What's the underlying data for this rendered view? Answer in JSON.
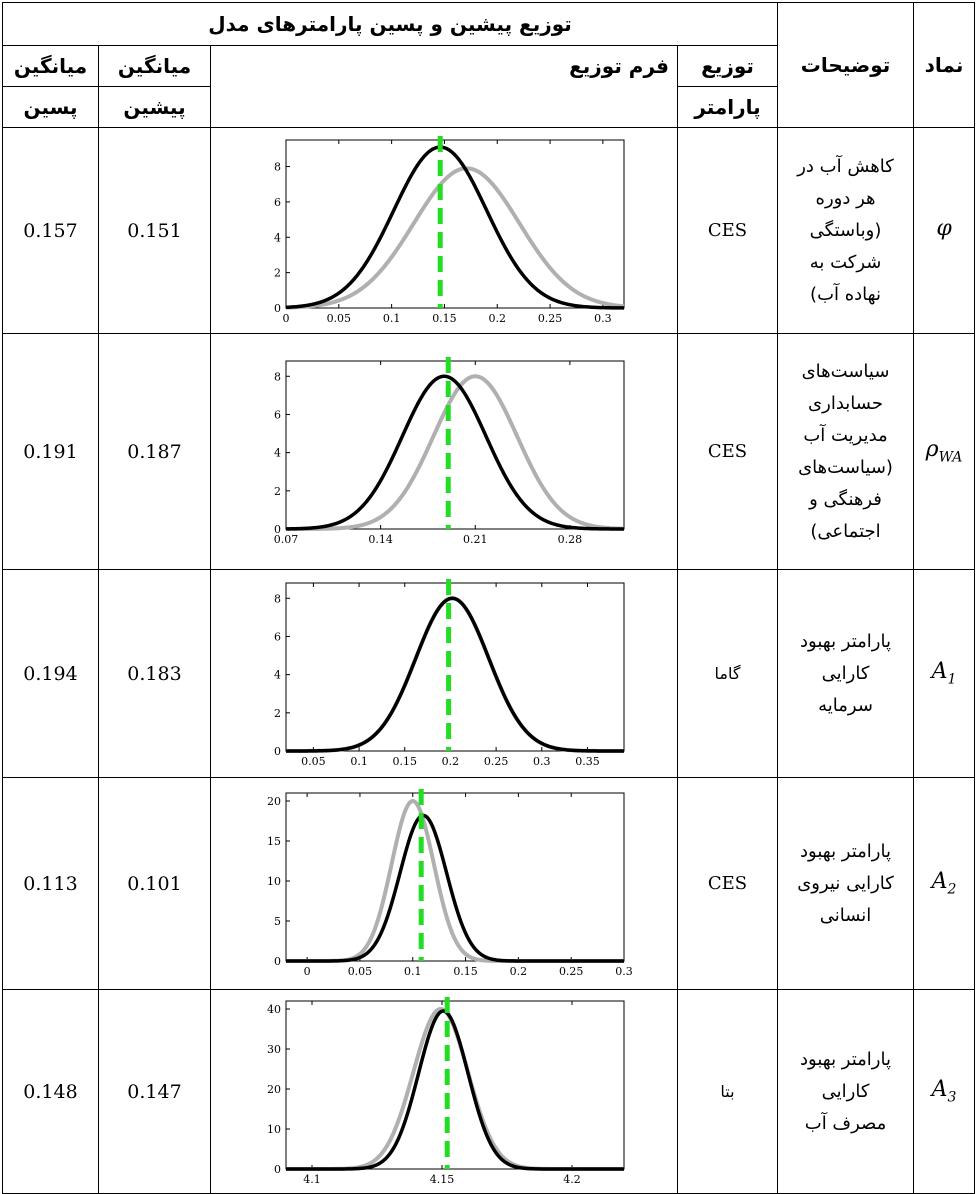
{
  "header": {
    "title": "توزیع پیشین و پسین پارامترهای مدل",
    "posterior_mean_line1": "میانگین",
    "posterior_mean_line2": "پسین",
    "prior_mean_line1": "میانگین",
    "prior_mean_line2": "پیشین",
    "dist_form": "فرم توزیع",
    "param_dist_line1": "توزیع",
    "param_dist_line2": "پارامتر",
    "description": "توضیحات",
    "symbol": "نماد"
  },
  "rows": [
    {
      "posterior_mean": "0.157",
      "prior_mean": "0.151",
      "param_dist": "CES",
      "description_lines": [
        "کاهش آب در",
        "هر دوره",
        "(وباستگی",
        "شرکت به",
        "نهاده آب)"
      ],
      "symbol": "φ",
      "symbol_sub": ""
    },
    {
      "posterior_mean": "0.191",
      "prior_mean": "0.187",
      "param_dist": "CES",
      "description_lines": [
        "سیاست‌های",
        "حسابداری",
        "مدیریت آب",
        "(سیاست‌های",
        "فرهنگی و",
        "اجتماعی)"
      ],
      "symbol": "ρ",
      "symbol_sub": "WA"
    },
    {
      "posterior_mean": "0.194",
      "prior_mean": "0.183",
      "param_dist": "گاما",
      "description_lines": [
        "پارامتر بهبود",
        "کارایی",
        "سرمایه"
      ],
      "symbol": "A",
      "symbol_sub": "1"
    },
    {
      "posterior_mean": "0.113",
      "prior_mean": "0.101",
      "param_dist": "CES",
      "description_lines": [
        "پارامتر بهبود",
        "کارایی نیروی",
        "انسانی"
      ],
      "symbol": "A",
      "symbol_sub": "2"
    },
    {
      "posterior_mean": "0.148",
      "prior_mean": "0.147",
      "param_dist": "بتا",
      "description_lines": [
        "پارامتر بهبود",
        "کارایی",
        "مصرف آب"
      ],
      "symbol": "A",
      "symbol_sub": "3"
    }
  ],
  "chart_data": [
    {
      "type": "line",
      "xlim": [
        0,
        0.32
      ],
      "ylim": [
        0,
        9.5
      ],
      "xticks": [
        "0",
        "0.05",
        "0.1",
        "0.15",
        "0.2",
        "0.25",
        "0.3"
      ],
      "xtick_values": [
        0,
        0.05,
        0.1,
        0.15,
        0.2,
        0.25,
        0.3
      ],
      "yticks": [
        "0",
        "2",
        "4",
        "6",
        "8"
      ],
      "ytick_values": [
        0,
        2,
        4,
        6,
        8
      ],
      "series": [
        {
          "mean": 0.171,
          "sd": 0.05,
          "peak": 7.9,
          "color": "#b0b0b0"
        },
        {
          "mean": 0.146,
          "sd": 0.044,
          "peak": 9.1,
          "color": "#000000"
        }
      ],
      "vline": {
        "x": 0.146,
        "color": "#22dd22"
      }
    },
    {
      "type": "line",
      "xlim": [
        0.07,
        0.32
      ],
      "ylim": [
        0,
        8.8
      ],
      "xticks": [
        "0.07",
        "0.14",
        "0.21",
        "0.28"
      ],
      "xtick_values": [
        0.07,
        0.14,
        0.21,
        0.28
      ],
      "yticks": [
        "0",
        "2",
        "4",
        "6",
        "8"
      ],
      "ytick_values": [
        0,
        2,
        4,
        6,
        8
      ],
      "series": [
        {
          "mean": 0.21,
          "sd": 0.031,
          "peak": 8.0,
          "color": "#b0b0b0"
        },
        {
          "mean": 0.187,
          "sd": 0.031,
          "peak": 8.0,
          "color": "#000000"
        }
      ],
      "vline": {
        "x": 0.19,
        "color": "#22dd22"
      }
    },
    {
      "type": "line",
      "xlim": [
        0.02,
        0.39
      ],
      "ylim": [
        0,
        8.8
      ],
      "xticks": [
        "0.05",
        "0.1",
        "0.15",
        "0.2",
        "0.25",
        "0.3",
        "0.35"
      ],
      "xtick_values": [
        0.05,
        0.1,
        0.15,
        0.2,
        0.25,
        0.3,
        0.35
      ],
      "yticks": [
        "0",
        "2",
        "4",
        "6",
        "8"
      ],
      "ytick_values": [
        0,
        2,
        4,
        6,
        8
      ],
      "series": [
        {
          "mean": 0.202,
          "sd": 0.04,
          "peak": 8.0,
          "color": "#b0b0b0"
        },
        {
          "mean": 0.202,
          "sd": 0.04,
          "peak": 8.0,
          "color": "#000000"
        }
      ],
      "vline": {
        "x": 0.198,
        "color": "#22dd22"
      }
    },
    {
      "type": "line",
      "xlim": [
        -0.02,
        0.3
      ],
      "ylim": [
        0,
        21
      ],
      "xticks": [
        "0",
        "0.05",
        "0.1",
        "0.15",
        "0.2",
        "0.25",
        "0.3"
      ],
      "xtick_values": [
        0,
        0.05,
        0.1,
        0.15,
        0.2,
        0.25,
        0.3
      ],
      "yticks": [
        "0",
        "5",
        "10",
        "15",
        "20"
      ],
      "ytick_values": [
        0,
        5,
        10,
        15,
        20
      ],
      "series": [
        {
          "mean": 0.1,
          "sd": 0.02,
          "peak": 20,
          "color": "#b0b0b0"
        },
        {
          "mean": 0.11,
          "sd": 0.022,
          "peak": 18.2,
          "color": "#000000"
        }
      ],
      "vline": {
        "x": 0.108,
        "color": "#22dd22"
      }
    },
    {
      "type": "line",
      "xlim": [
        4.09,
        4.22
      ],
      "ylim": [
        0,
        42
      ],
      "xticks": [
        "4.1",
        "4.15",
        "4.2"
      ],
      "xtick_values": [
        4.1,
        4.15,
        4.2
      ],
      "yticks": [
        "0",
        "10",
        "20",
        "30",
        "40"
      ],
      "ytick_values": [
        0,
        10,
        20,
        30,
        40
      ],
      "series": [
        {
          "mean": 4.1495,
          "sd": 0.0105,
          "peak": 40,
          "color": "#b0b0b0"
        },
        {
          "mean": 4.1505,
          "sd": 0.0095,
          "peak": 39.5,
          "color": "#000000"
        }
      ],
      "vline": {
        "x": 4.152,
        "color": "#22dd22"
      }
    }
  ]
}
